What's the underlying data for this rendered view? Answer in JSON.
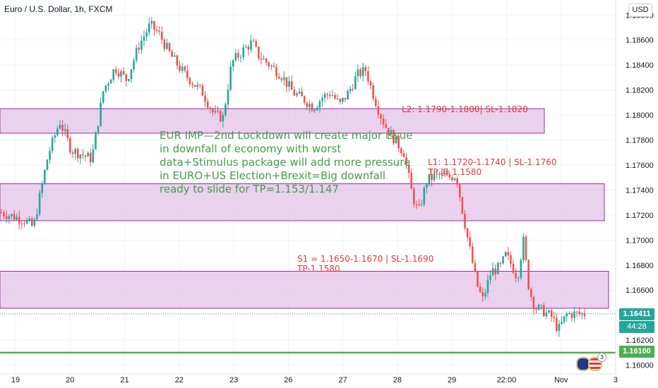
{
  "header": {
    "title": "Euro / U.S. Dollar, 1h, FXCM",
    "currency": "USD"
  },
  "annotations": {
    "main_note": "EUR IMP—2nd Lockdown will create major issue in downfall of economy with worst data+Stimulus package will add more pressure in EURO+US Election+Brexit=Big downfall ready to slide for TP=1.153/1.147",
    "l2": "L2: 1.1790-1.1800| SL-1.1820",
    "l1": "L1: 1.1720-1.1740 | SL-1.1760",
    "l1_tp": "TP @ 1.1580",
    "s1": "S1 = 1.1650-1.1670 | SL-1.1690",
    "s1_tp": "TP-1.1580"
  },
  "price_labels": {
    "current": "1.16411",
    "countdown": "44:28",
    "green_line": "1.16100"
  },
  "badge_count": "3",
  "colors": {
    "up": "#26a69a",
    "down": "#ef5350",
    "zone_fill": "#e1bee7",
    "zone_border": "#9c27b0",
    "green_line": "#4caf50",
    "current_box": "#26a69a"
  },
  "chart_data": {
    "type": "candlestick",
    "title": "Euro / U.S. Dollar, 1h, FXCM",
    "ylim": [
      1.1593,
      1.1892
    ],
    "y_ticks": [
      "1.18800",
      "1.18600",
      "1.18400",
      "1.18200",
      "1.18000",
      "1.17800",
      "1.17600",
      "1.17400",
      "1.17200",
      "1.17000",
      "1.16800",
      "1.16600",
      "1.16400",
      "1.16200",
      "1.16000"
    ],
    "x_ticks": [
      "19",
      "20",
      "21",
      "22",
      "23",
      "26",
      "27",
      "28",
      "29",
      "22:00",
      "Nov",
      "3"
    ],
    "zones": [
      {
        "name": "L2",
        "low": 1.179,
        "high": 1.18
      },
      {
        "name": "L1",
        "low": 1.172,
        "high": 1.174
      },
      {
        "name": "S1",
        "low": 1.165,
        "high": 1.167
      }
    ],
    "horizontal_line": 1.161,
    "current_price": 1.16411,
    "close_path": [
      [
        0,
        1.1722
      ],
      [
        0.04,
        1.1716
      ],
      [
        0.055,
        1.171
      ],
      [
        0.08,
        1.1768
      ],
      [
        0.1,
        1.1795
      ],
      [
        0.12,
        1.1772
      ],
      [
        0.14,
        1.1768
      ],
      [
        0.155,
        1.1765
      ],
      [
        0.175,
        1.182
      ],
      [
        0.195,
        1.1838
      ],
      [
        0.215,
        1.1828
      ],
      [
        0.235,
        1.1855
      ],
      [
        0.255,
        1.1872
      ],
      [
        0.27,
        1.1865
      ],
      [
        0.29,
        1.1848
      ],
      [
        0.31,
        1.1835
      ],
      [
        0.33,
        1.1825
      ],
      [
        0.345,
        1.1818
      ],
      [
        0.365,
        1.18
      ],
      [
        0.38,
        1.1798
      ],
      [
        0.395,
        1.1842
      ],
      [
        0.415,
        1.1852
      ],
      [
        0.43,
        1.1858
      ],
      [
        0.44,
        1.1848
      ],
      [
        0.46,
        1.184
      ],
      [
        0.48,
        1.1832
      ],
      [
        0.5,
        1.1818
      ],
      [
        0.52,
        1.1812
      ],
      [
        0.535,
        1.1806
      ],
      [
        0.55,
        1.1814
      ],
      [
        0.565,
        1.1818
      ],
      [
        0.58,
        1.1808
      ],
      [
        0.595,
        1.1818
      ],
      [
        0.61,
        1.1832
      ],
      [
        0.625,
        1.1836
      ],
      [
        0.635,
        1.182
      ],
      [
        0.65,
        1.18
      ],
      [
        0.66,
        1.179
      ],
      [
        0.675,
        1.178
      ],
      [
        0.69,
        1.177
      ],
      [
        0.705,
        1.1735
      ],
      [
        0.715,
        1.1722
      ],
      [
        0.73,
        1.1748
      ],
      [
        0.75,
        1.1752
      ],
      [
        0.765,
        1.175
      ],
      [
        0.78,
        1.1752
      ],
      [
        0.79,
        1.1725
      ],
      [
        0.8,
        1.17
      ],
      [
        0.815,
        1.1665
      ],
      [
        0.825,
        1.1652
      ],
      [
        0.84,
        1.1675
      ],
      [
        0.855,
        1.1678
      ],
      [
        0.865,
        1.1688
      ],
      [
        0.875,
        1.168
      ],
      [
        0.885,
        1.167
      ],
      [
        0.895,
        1.17
      ],
      [
        0.905,
        1.166
      ],
      [
        0.915,
        1.1646
      ],
      [
        0.93,
        1.1643
      ],
      [
        0.945,
        1.1638
      ],
      [
        0.955,
        1.1628
      ],
      [
        0.97,
        1.1641
      ]
    ]
  }
}
